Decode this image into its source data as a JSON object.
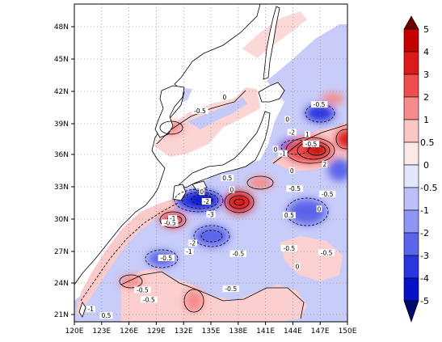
{
  "map": {
    "lon_ticks": [
      "120E",
      "123E",
      "126E",
      "129E",
      "132E",
      "135E",
      "138E",
      "141E",
      "144E",
      "147E",
      "150E"
    ],
    "lat_ticks": [
      "21N",
      "24N",
      "27N",
      "30N",
      "33N",
      "36N",
      "39N",
      "42N",
      "45N",
      "48N"
    ],
    "contour_labels": [
      {
        "text": "-1",
        "lon": 121.8,
        "lat": 21.4
      },
      {
        "text": "0.5",
        "lon": 123.5,
        "lat": 20.8
      },
      {
        "text": "-0.5",
        "lon": 130.1,
        "lat": 26.2
      },
      {
        "text": "-0.5",
        "lon": 127.5,
        "lat": 23.2
      },
      {
        "text": "-0.5",
        "lon": 128.2,
        "lat": 22.3
      },
      {
        "text": "-0.5",
        "lon": 130.5,
        "lat": 29.5
      },
      {
        "text": "-1",
        "lon": 130.8,
        "lat": 29.9
      },
      {
        "text": "-1",
        "lon": 132.6,
        "lat": 26.8
      },
      {
        "text": "-2",
        "lon": 133.0,
        "lat": 27.6
      },
      {
        "text": "-3",
        "lon": 135.0,
        "lat": 30.3
      },
      {
        "text": "-2",
        "lon": 134.5,
        "lat": 31.5
      },
      {
        "text": "0",
        "lon": 134.0,
        "lat": 32.4
      },
      {
        "text": "0",
        "lon": 137.3,
        "lat": 32.6
      },
      {
        "text": "0.5",
        "lon": 136.8,
        "lat": 33.7
      },
      {
        "text": "-0.5",
        "lon": 137.2,
        "lat": 23.3
      },
      {
        "text": "-0.5",
        "lon": 138.0,
        "lat": 26.6
      },
      {
        "text": "-0.5",
        "lon": 133.8,
        "lat": 40.0
      },
      {
        "text": "0",
        "lon": 136.5,
        "lat": 41.3
      },
      {
        "text": "-0.5",
        "lon": 144.2,
        "lat": 32.7
      },
      {
        "text": "0",
        "lon": 143.9,
        "lat": 34.4
      },
      {
        "text": "-1",
        "lon": 142.9,
        "lat": 36.0
      },
      {
        "text": "0",
        "lon": 142.1,
        "lat": 36.4
      },
      {
        "text": "-2",
        "lon": 143.9,
        "lat": 38.0
      },
      {
        "text": "0",
        "lon": 143.4,
        "lat": 39.2
      },
      {
        "text": "1",
        "lon": 145.6,
        "lat": 37.8
      },
      {
        "text": "-0.5",
        "lon": 146.0,
        "lat": 36.9
      },
      {
        "text": "-0.5",
        "lon": 146.9,
        "lat": 40.6
      },
      {
        "text": "0",
        "lon": 146.9,
        "lat": 30.8
      },
      {
        "text": "-0.5",
        "lon": 147.8,
        "lat": 32.2
      },
      {
        "text": "0.5",
        "lon": 143.6,
        "lat": 30.2
      },
      {
        "text": "-0.5",
        "lon": 147.7,
        "lat": 26.7
      },
      {
        "text": "-0.5",
        "lon": 143.6,
        "lat": 27.1
      },
      {
        "text": "0",
        "lon": 144.5,
        "lat": 25.4
      },
      {
        "text": "2",
        "lon": 147.5,
        "lat": 35.0
      }
    ]
  },
  "colorbar": {
    "labels": [
      "5",
      "4",
      "3",
      "2",
      "1",
      "0.5",
      "0",
      "-0.5",
      "-1",
      "-2",
      "-3",
      "-4",
      "-5"
    ],
    "colors": {
      "over": "#6b0000",
      "c4": "#c40000",
      "c3": "#dd1a1a",
      "c2": "#ee4e4e",
      "c1": "#f78a8a",
      "c05": "#fbc6c6",
      "cp0": "#fde8e8",
      "cn0": "#e4e6fd",
      "cn05": "#bcc0f9",
      "cn1": "#8e95f2",
      "cn2": "#5b64ea",
      "cn3": "#2a35e0",
      "cn4": "#0612c8",
      "under": "#000a6b"
    }
  }
}
